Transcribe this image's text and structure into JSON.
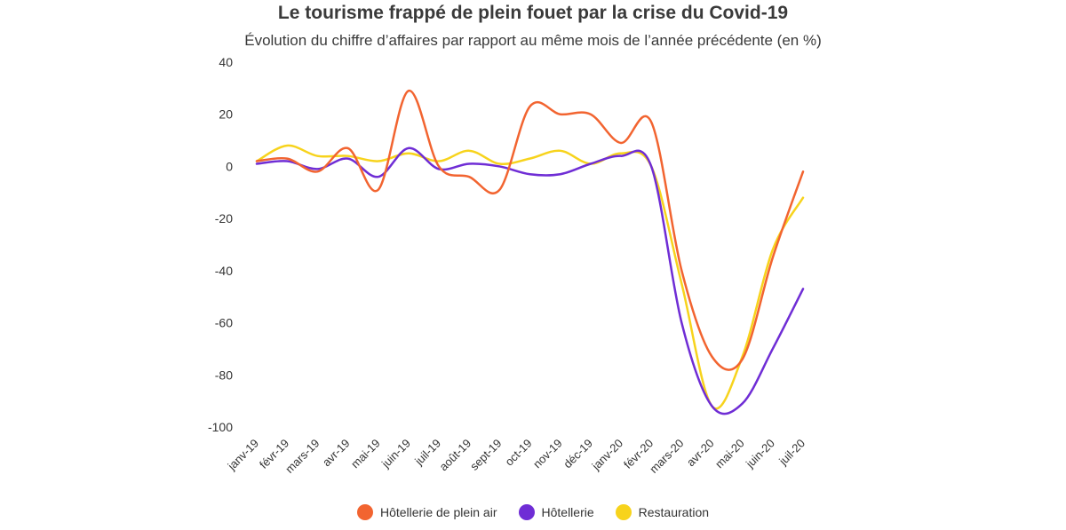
{
  "chart_data": {
    "type": "line",
    "title": "Le tourisme frappé de plein fouet par la crise du Covid-19",
    "subtitle": "Évolution du chiffre d’affaires par rapport au même mois de l’année précédente (en %)",
    "xlabel": "",
    "ylabel": "",
    "ylim": [
      -100,
      40
    ],
    "yticks": [
      40,
      20,
      0,
      -20,
      -40,
      -60,
      -80,
      -100
    ],
    "grid": false,
    "legend_position": "bottom",
    "categories": [
      "janv-19",
      "févr-19",
      "mars-19",
      "avr-19",
      "mai-19",
      "juin-19",
      "juil-19",
      "août-19",
      "sept-19",
      "oct-19",
      "nov-19",
      "déc-19",
      "janv-20",
      "févr-20",
      "mars-20",
      "avr-20",
      "mai-20",
      "juin-20",
      "juil-20"
    ],
    "series": [
      {
        "name": "Hôtellerie de plein air",
        "color": "#f26430",
        "values": [
          2,
          3,
          -2,
          7,
          -9,
          29,
          0,
          -4,
          -9,
          23,
          20,
          20,
          9,
          17,
          -40,
          -73,
          -74,
          -35,
          -2
        ]
      },
      {
        "name": "Hôtellerie",
        "color": "#6f2dd5",
        "values": [
          1,
          2,
          -1,
          3,
          -4,
          7,
          -1,
          1,
          0,
          -3,
          -3,
          1,
          4,
          0,
          -60,
          -92,
          -91,
          -70,
          -47
        ]
      },
      {
        "name": "Restauration",
        "color": "#f7d31c",
        "values": [
          2,
          8,
          4,
          4,
          2,
          5,
          2,
          6,
          1,
          3,
          6,
          1,
          5,
          0,
          -45,
          -92,
          -73,
          -32,
          -12
        ]
      }
    ]
  }
}
